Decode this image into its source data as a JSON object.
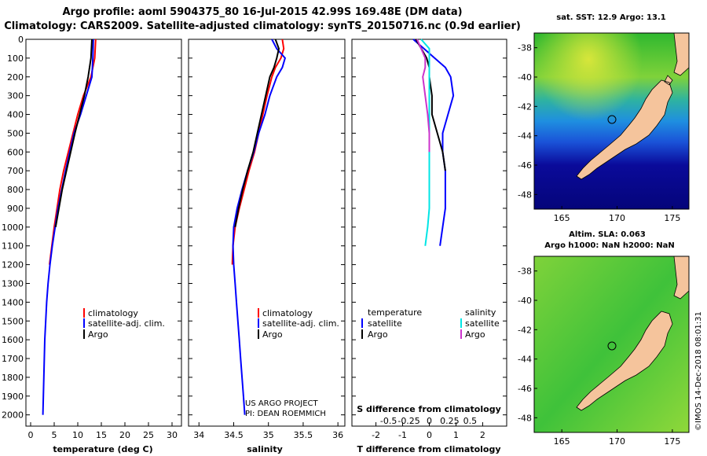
{
  "header": {
    "line1": "Argo profile: aoml 5904375_80 16-Jul-2015 42.99S 169.48E (DM data)",
    "line2": "Climatology: CARS2009. Satellite-adjusted climatology: synTS_20150716.nc (0.9d earlier)"
  },
  "colors": {
    "climatology": "#ff0000",
    "satellite": "#0000ff",
    "argo": "#000000",
    "satellite_salinity": "#00e5e5",
    "argo_salinity": "#cc33cc",
    "land": "#f5c49c"
  },
  "chart_data": [
    {
      "type": "line",
      "name": "temperature-profile",
      "xlabel": "temperature (deg C)",
      "ylabel": "",
      "xlim": [
        -1,
        32
      ],
      "ylim": [
        2060,
        0
      ],
      "xticks": [
        0,
        5,
        10,
        15,
        20,
        25,
        30
      ],
      "xticklabels": [
        "0",
        "5",
        "10",
        "15",
        "20",
        "25",
        "30"
      ],
      "yticks": [
        0,
        100,
        200,
        300,
        400,
        500,
        600,
        700,
        800,
        900,
        1000,
        1100,
        1200,
        1300,
        1400,
        1500,
        1600,
        1700,
        1800,
        1900,
        2000
      ],
      "yticklabels": [
        "0",
        "100",
        "200",
        "300",
        "400",
        "500",
        "600",
        "700",
        "800",
        "900",
        "1000",
        "1100",
        "1200",
        "1300",
        "1400",
        "1500",
        "1600",
        "1700",
        "1800",
        "1900",
        "2000"
      ],
      "legend": [
        "climatology",
        "satellite-adj. clim.",
        "Argo"
      ],
      "series": [
        {
          "name": "climatology",
          "color": "#ff0000",
          "depth": [
            0,
            100,
            200,
            300,
            400,
            500,
            600,
            700,
            800,
            900,
            1000,
            1100,
            1200
          ],
          "values": [
            13.8,
            13.6,
            12.8,
            11.2,
            10.0,
            9.0,
            8.0,
            7.0,
            6.2,
            5.6,
            5.0,
            4.5,
            4.0
          ]
        },
        {
          "name": "satellite-adj. clim.",
          "color": "#0000ff",
          "depth": [
            0,
            100,
            200,
            300,
            400,
            500,
            600,
            700,
            800,
            900,
            1000,
            1100,
            1200,
            1300,
            1400,
            1500,
            1600,
            1700,
            1800,
            1900,
            2000
          ],
          "values": [
            13.3,
            13.2,
            13.0,
            11.8,
            10.6,
            9.2,
            8.3,
            7.4,
            6.6,
            5.8,
            5.2,
            4.6,
            4.1,
            3.7,
            3.4,
            3.2,
            3.0,
            2.9,
            2.8,
            2.7,
            2.6
          ]
        },
        {
          "name": "Argo",
          "color": "#000000",
          "depth": [
            0,
            50,
            100,
            150,
            200,
            300,
            400,
            500,
            600,
            700,
            800,
            900,
            1000
          ],
          "values": [
            13.0,
            12.9,
            12.8,
            12.5,
            12.2,
            11.4,
            10.4,
            9.4,
            8.5,
            7.6,
            6.7,
            6.0,
            5.3
          ]
        }
      ]
    },
    {
      "type": "line",
      "name": "salinity-profile",
      "xlabel": "salinity",
      "ylabel": "",
      "xlim": [
        33.85,
        36.1
      ],
      "ylim": [
        2060,
        0
      ],
      "xticks": [
        34,
        34.5,
        35,
        35.5,
        36
      ],
      "xticklabels": [
        "34",
        "34.5",
        "35",
        "35.5",
        "36"
      ],
      "legend": [
        "climatology",
        "satellite-adj. clim.",
        "Argo"
      ],
      "series": [
        {
          "name": "climatology",
          "color": "#ff0000",
          "depth": [
            0,
            50,
            100,
            150,
            200,
            300,
            400,
            500,
            600,
            700,
            800,
            900,
            1000,
            1100,
            1200
          ],
          "values": [
            35.2,
            35.22,
            35.18,
            35.1,
            35.05,
            34.98,
            34.92,
            34.86,
            34.8,
            34.72,
            34.65,
            34.58,
            34.52,
            34.49,
            34.48
          ]
        },
        {
          "name": "satellite-adj. clim.",
          "color": "#0000ff",
          "depth": [
            0,
            50,
            100,
            150,
            200,
            300,
            400,
            500,
            600,
            700,
            800,
            900,
            1000,
            1100,
            1200,
            1300,
            1400,
            1500,
            1600,
            1700,
            1800,
            1900,
            2000
          ],
          "values": [
            35.05,
            35.12,
            35.24,
            35.2,
            35.12,
            35.02,
            34.95,
            34.86,
            34.79,
            34.7,
            34.62,
            34.55,
            34.5,
            34.49,
            34.5,
            34.52,
            34.54,
            34.56,
            34.58,
            34.6,
            34.62,
            34.64,
            34.66
          ]
        },
        {
          "name": "Argo",
          "color": "#000000",
          "depth": [
            0,
            50,
            100,
            150,
            200,
            300,
            400,
            500,
            600,
            700,
            800,
            900,
            1000
          ],
          "values": [
            35.1,
            35.15,
            35.12,
            35.08,
            35.02,
            34.96,
            34.9,
            34.84,
            34.78,
            34.7,
            34.63,
            34.57,
            34.52
          ]
        }
      ],
      "annotations": [
        "US ARGO PROJECT",
        "PI: DEAN ROEMMICH"
      ]
    },
    {
      "type": "line",
      "name": "difference-profile",
      "xlabel": "T difference from climatology",
      "xlabel_top": "S difference from climatology",
      "xlim": [
        -2.9,
        2.9
      ],
      "ylim": [
        2060,
        0
      ],
      "xticks": [
        -2,
        -1,
        0,
        1,
        2
      ],
      "xticklabels": [
        "-2",
        "-1",
        "0",
        "1",
        "2"
      ],
      "sticks": [
        -0.5,
        -0.25,
        0,
        0.25,
        0.5
      ],
      "sticklabels": [
        "-0.5",
        "-0.25",
        "0",
        "0.25",
        "0.5"
      ],
      "legend_headers": [
        "temperature",
        "salinity"
      ],
      "legend": [
        "satellite",
        "Argo",
        "satellite",
        "Argo"
      ],
      "series": [
        {
          "name": "T satellite",
          "color": "#0000ff",
          "depth": [
            0,
            50,
            100,
            150,
            200,
            300,
            400,
            500,
            600,
            700,
            800,
            900,
            1000,
            1100
          ],
          "values": [
            -0.6,
            -0.2,
            0.2,
            0.6,
            0.8,
            0.9,
            0.7,
            0.5,
            0.5,
            0.6,
            0.6,
            0.6,
            0.5,
            0.4
          ]
        },
        {
          "name": "T Argo",
          "color": "#000000",
          "depth": [
            0,
            50,
            100,
            150,
            200,
            300,
            400,
            500,
            600,
            700
          ],
          "values": [
            -0.5,
            -0.3,
            -0.1,
            0.0,
            0.0,
            0.1,
            0.1,
            0.3,
            0.5,
            0.6
          ]
        },
        {
          "name": "S satellite",
          "color": "#00e5e5",
          "depth": [
            0,
            50,
            100,
            150,
            200,
            300,
            400,
            500,
            600,
            700,
            800,
            900,
            1000,
            1100
          ],
          "values": [
            -0.1,
            0.0,
            0.0,
            0.0,
            0.0,
            0.0,
            0.0,
            0.0,
            0.0,
            0.0,
            0.0,
            0.0,
            -0.02,
            -0.05
          ]
        },
        {
          "name": "S Argo",
          "color": "#cc33cc",
          "depth": [
            0,
            50,
            100,
            150,
            200,
            300,
            400,
            500,
            600
          ],
          "values": [
            -0.15,
            -0.1,
            -0.05,
            -0.05,
            -0.08,
            -0.05,
            -0.02,
            0.0,
            0.0
          ]
        }
      ]
    },
    {
      "type": "heatmap",
      "name": "sst-map",
      "title": "sat. SST: 12.9 Argo: 13.1",
      "xticks": [
        165,
        170,
        175
      ],
      "xticklabels": [
        "165",
        "170",
        "175"
      ],
      "yticks": [
        -38,
        -40,
        -42,
        -44,
        -46,
        -48
      ],
      "yticklabels": [
        "-38",
        "-40",
        "-42",
        "-44",
        "-46",
        "-48"
      ],
      "xlim": [
        162.5,
        176.5
      ],
      "ylim": [
        -49.0,
        -37.0
      ],
      "float_position": [
        169.48,
        -42.99
      ]
    },
    {
      "type": "heatmap",
      "name": "sla-map",
      "title": "Altim. SLA: 0.063",
      "subtitle": "Argo h1000: NaN h2000: NaN",
      "xticks": [
        165,
        170,
        175
      ],
      "xticklabels": [
        "165",
        "170",
        "175"
      ],
      "yticks": [
        -38,
        -40,
        -42,
        -44,
        -46,
        -48
      ],
      "yticklabels": [
        "-38",
        "-40",
        "-42",
        "-44",
        "-46",
        "-48"
      ],
      "xlim": [
        162.5,
        176.5
      ],
      "ylim": [
        -49.0,
        -37.0
      ],
      "float_position": [
        169.48,
        -42.99
      ],
      "credit": "©IMOS 14-Dec-2018 08:01:31"
    }
  ]
}
